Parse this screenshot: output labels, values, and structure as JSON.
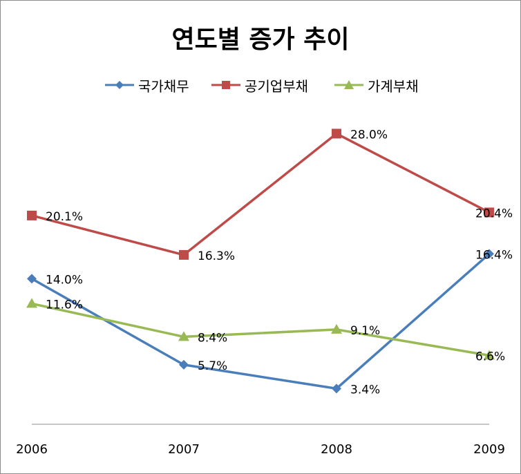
{
  "chart_data": {
    "type": "line",
    "title": "연도별 증가 추이",
    "categories": [
      "2006",
      "2007",
      "2008",
      "2009"
    ],
    "series": [
      {
        "name": "국가채무",
        "values": [
          14.0,
          5.7,
          3.4,
          16.4
        ],
        "labels": [
          "14.0%",
          "5.7%",
          "3.4%",
          "16.4%"
        ],
        "color": "#4a7ebb",
        "marker": "diamond"
      },
      {
        "name": "공기업부채",
        "values": [
          20.1,
          16.3,
          28.0,
          20.4
        ],
        "labels": [
          "20.1%",
          "16.3%",
          "28.0%",
          "20.4%"
        ],
        "color": "#be4b48",
        "marker": "square"
      },
      {
        "name": "가계부채",
        "values": [
          11.6,
          8.4,
          9.1,
          6.6
        ],
        "labels": [
          "11.6%",
          "8.4%",
          "9.1%",
          "6.6%"
        ],
        "color": "#98b954",
        "marker": "triangle"
      }
    ],
    "xlabel": "",
    "ylabel": "",
    "ylim": [
      0,
      30
    ],
    "grid": false,
    "legend": "top"
  }
}
